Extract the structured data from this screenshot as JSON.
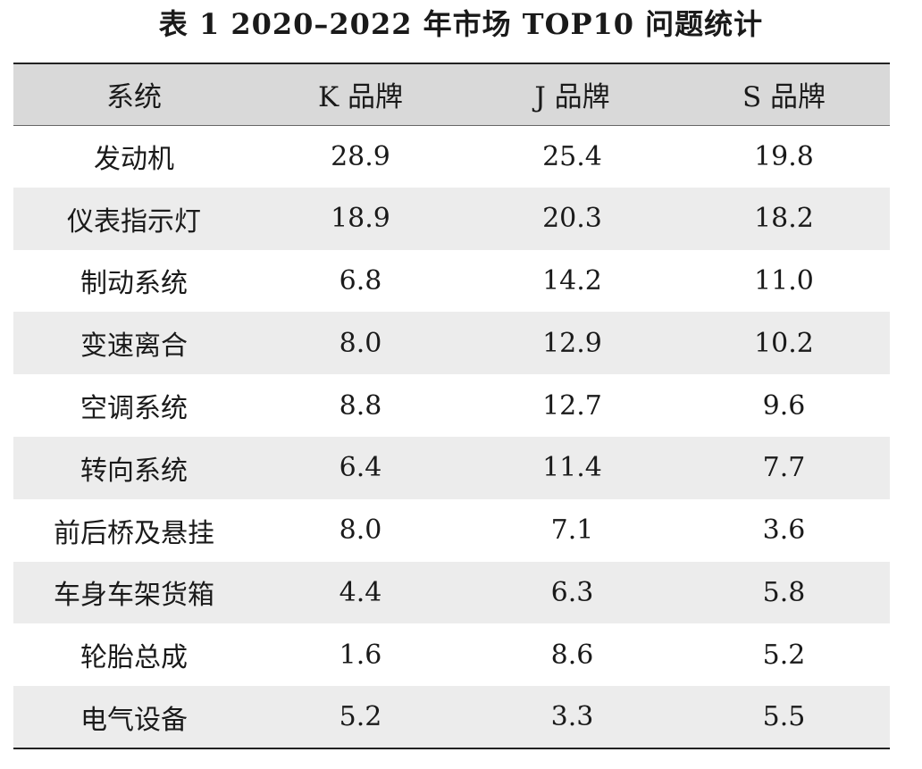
{
  "title": "表 1 2020–2022 年市场 TOP10 问题统计",
  "table": {
    "headers": [
      "系统",
      "K 品牌",
      "J 品牌",
      "S 品牌"
    ],
    "rows": [
      [
        "发动机",
        "28.9",
        "25.4",
        "19.8"
      ],
      [
        "仪表指示灯",
        "18.9",
        "20.3",
        "18.2"
      ],
      [
        "制动系统",
        "6.8",
        "14.2",
        "11.0"
      ],
      [
        "变速离合",
        "8.0",
        "12.9",
        "10.2"
      ],
      [
        "空调系统",
        "8.8",
        "12.7",
        "9.6"
      ],
      [
        "转向系统",
        "6.4",
        "11.4",
        "7.7"
      ],
      [
        "前后桥及悬挂",
        "8.0",
        "7.1",
        "3.6"
      ],
      [
        "车身车架货箱",
        "4.4",
        "6.3",
        "5.8"
      ],
      [
        "轮胎总成",
        "1.6",
        "8.6",
        "5.2"
      ],
      [
        "电气设备",
        "5.2",
        "3.3",
        "5.5"
      ]
    ]
  },
  "colors": {
    "header_bg": "#d9d9d9",
    "row_shade": "#ececec",
    "rule": "#222222"
  }
}
